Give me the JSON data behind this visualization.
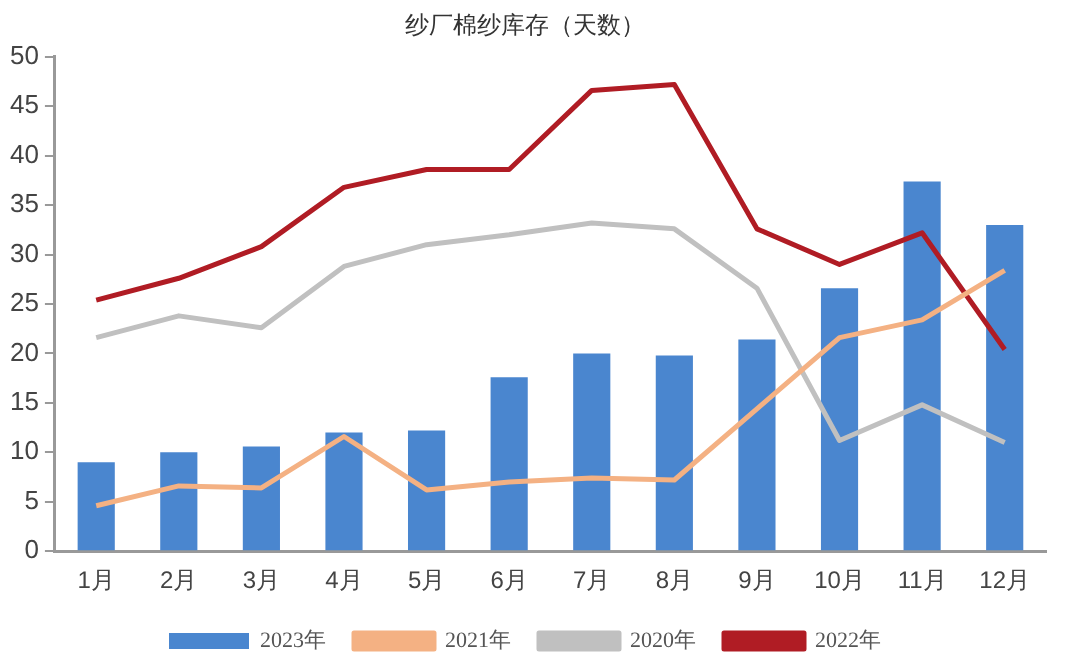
{
  "chart_data": {
    "type": "bar",
    "title": "纱厂棉纱库存（天数）",
    "categories": [
      "1月",
      "2月",
      "3月",
      "4月",
      "5月",
      "6月",
      "7月",
      "8月",
      "9月",
      "10月",
      "11月",
      "12月"
    ],
    "series": [
      {
        "name": "2023年",
        "color": "#4a86cf",
        "values": [
          9,
          10,
          10.6,
          12,
          12.2,
          17.6,
          20,
          19.8,
          21.4,
          26.6,
          37.4,
          33
        ]
      },
      {
        "name": "2021年",
        "type": "line",
        "color": "#f4b183",
        "values": [
          4.6,
          6.6,
          6.4,
          11.6,
          6.2,
          7,
          7.4,
          7.2,
          14.4,
          21.6,
          23.4,
          28.4
        ]
      },
      {
        "name": "2020年",
        "type": "line",
        "color": "#c0c0c0",
        "values": [
          21.6,
          23.8,
          22.6,
          28.8,
          31,
          32,
          33.2,
          32.6,
          26.6,
          11.2,
          14.8,
          11
        ]
      },
      {
        "name": "2022年",
        "type": "line",
        "color": "#b01c24",
        "values": [
          25.4,
          27.6,
          30.8,
          36.8,
          38.6,
          38.6,
          46.6,
          47.2,
          32.6,
          29,
          32.2,
          20.4
        ]
      }
    ],
    "ylim": [
      0,
      50
    ],
    "yticks": [
      0,
      5,
      10,
      15,
      20,
      25,
      30,
      35,
      40,
      45,
      50
    ],
    "grid": false,
    "legend": "bottom",
    "marker": "none",
    "line_style": "solid"
  }
}
